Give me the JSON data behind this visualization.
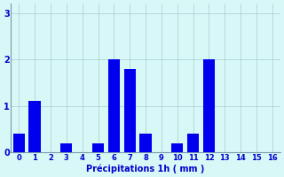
{
  "categories": [
    0,
    1,
    2,
    3,
    4,
    5,
    6,
    7,
    8,
    9,
    10,
    11,
    12,
    13,
    14,
    15,
    16
  ],
  "values": [
    0.4,
    1.1,
    0.0,
    0.2,
    0.0,
    0.2,
    2.0,
    1.8,
    0.4,
    0.0,
    0.2,
    0.4,
    2.0,
    0.0,
    0.0,
    0.0,
    0.0
  ],
  "bar_color": "#0000ee",
  "background_color": "#d8f8f8",
  "grid_color": "#aacccc",
  "xlabel": "Précipitations 1h ( mm )",
  "xlabel_color": "#0000cc",
  "tick_color": "#0000cc",
  "spine_color": "#7799aa",
  "ylim": [
    0,
    3.2
  ],
  "yticks": [
    0,
    1,
    2,
    3
  ],
  "bar_width": 0.75,
  "xlim_left": -0.5,
  "xlim_right": 16.5
}
